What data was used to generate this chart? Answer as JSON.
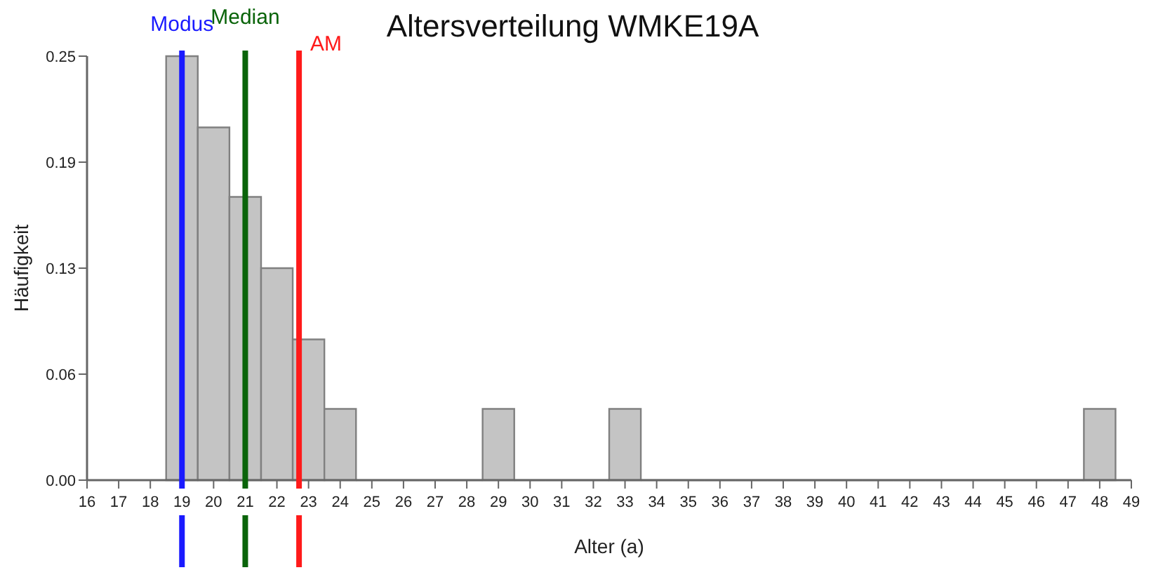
{
  "chart_data": {
    "type": "histogram",
    "title": "Altersverteilung WMKE19A",
    "xlabel": "Alter (a)",
    "ylabel": "Häufigkeit",
    "bins": [
      18.5,
      19.5,
      20.5,
      21.5,
      22.5,
      23.5,
      24.5,
      25.5,
      26.5,
      27.5,
      28.5,
      29.5,
      30.5,
      31.5,
      32.5,
      33.5,
      34.5,
      35.5,
      36.5,
      37.5,
      38.5,
      39.5,
      40.5,
      41.5,
      42.5,
      43.5,
      44.5,
      45.5,
      46.5,
      47.5,
      48.5
    ],
    "values": [
      0.25,
      0.208,
      0.167,
      0.125,
      0.083,
      0.042,
      0,
      0,
      0,
      0,
      0.042,
      0,
      0,
      0,
      0.042,
      0,
      0,
      0,
      0,
      0,
      0,
      0,
      0,
      0,
      0,
      0,
      0,
      0,
      0,
      0.042
    ],
    "color": "#c4c4c4",
    "xlim": [
      16,
      49
    ],
    "xticks": [
      16,
      17,
      18,
      19,
      20,
      21,
      22,
      23,
      24,
      25,
      26,
      27,
      28,
      29,
      30,
      31,
      32,
      33,
      34,
      35,
      36,
      37,
      38,
      39,
      40,
      41,
      42,
      43,
      44,
      45,
      46,
      47,
      48,
      49
    ],
    "ylim": [
      0,
      0.25
    ],
    "yticks": [
      {
        "value": 0,
        "label": "0.00"
      },
      {
        "value": 0.0625,
        "label": "0.06"
      },
      {
        "value": 0.125,
        "label": "0.13"
      },
      {
        "value": 0.1875,
        "label": "0.19"
      },
      {
        "value": 0.25,
        "label": "0.25"
      }
    ],
    "ref_lines": [
      {
        "axis": "x",
        "value": 19,
        "label": "Modus",
        "color": "#1a1aff"
      },
      {
        "axis": "x",
        "value": 21,
        "label": "Median",
        "color": "#0a640a"
      },
      {
        "axis": "x",
        "value": 22.7,
        "label": "AM",
        "color": "#ff1a1a"
      }
    ],
    "grid": false
  }
}
